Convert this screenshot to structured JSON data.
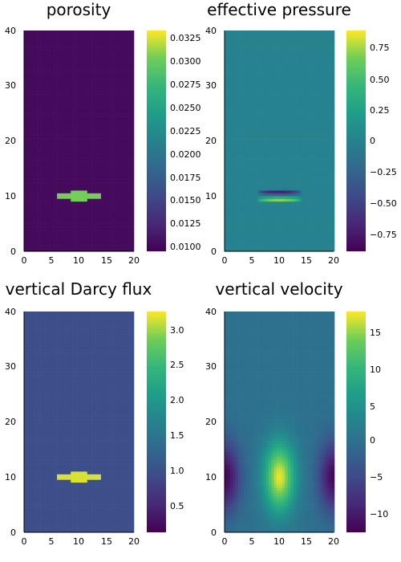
{
  "chart_data": [
    {
      "type": "heatmap",
      "title": "porosity",
      "colormap": "viridis",
      "xlim": [
        0,
        20
      ],
      "ylim": [
        0,
        40
      ],
      "xticks": [
        "0",
        "5",
        "10",
        "15",
        "20"
      ],
      "yticks": [
        "0",
        "10",
        "20",
        "30",
        "40"
      ],
      "clim": [
        0.0095,
        0.0334
      ],
      "colorbar_ticks": [
        "0.0100",
        "0.0125",
        "0.0150",
        "0.0175",
        "0.0200",
        "0.0225",
        "0.0250",
        "0.0275",
        "0.0300",
        "0.0325"
      ],
      "field": {
        "background": 0.0102,
        "feature": "lens",
        "center": [
          10,
          10
        ],
        "half_width": 4,
        "half_height": 0.8,
        "peak": 0.0305
      }
    },
    {
      "type": "heatmap",
      "title": "effective pressure",
      "colormap": "viridis",
      "xlim": [
        0,
        20
      ],
      "ylim": [
        0,
        40
      ],
      "xticks": [
        "0",
        "5",
        "10",
        "15",
        "20"
      ],
      "yticks": [
        "0",
        "10",
        "20",
        "30",
        "40"
      ],
      "clim": [
        -0.88,
        0.88
      ],
      "colorbar_ticks": [
        "0.75",
        "0.50",
        "0.25",
        "0",
        "−0.25",
        "−0.50",
        "−0.75"
      ],
      "field": {
        "background": 0.0,
        "feature": "dipole",
        "center": [
          10,
          10
        ],
        "half_width": 4,
        "min": -0.85,
        "max": 0.85
      }
    },
    {
      "type": "heatmap",
      "title": "vertical Darcy flux",
      "colormap": "viridis",
      "xlim": [
        0,
        20
      ],
      "ylim": [
        0,
        40
      ],
      "xticks": [
        "0",
        "5",
        "10",
        "15",
        "20"
      ],
      "yticks": [
        "0",
        "10",
        "20",
        "30",
        "40"
      ],
      "clim": [
        0.15,
        3.3
      ],
      "colorbar_ticks": [
        "3.0",
        "2.5",
        "2.0",
        "1.5",
        "1.0",
        "0.5"
      ],
      "field": {
        "background": 1.0,
        "feature": "lens",
        "center": [
          10,
          10
        ],
        "half_width": 4,
        "half_height": 0.8,
        "peak": 3.2
      }
    },
    {
      "type": "heatmap",
      "title": "vertical velocity",
      "colormap": "viridis",
      "xlim": [
        0,
        20
      ],
      "ylim": [
        0,
        40
      ],
      "xticks": [
        "0",
        "5",
        "10",
        "15",
        "20"
      ],
      "yticks": [
        "0",
        "10",
        "20",
        "30",
        "40"
      ],
      "clim": [
        -12.5,
        17.5
      ],
      "colorbar_ticks": [
        "15",
        "10",
        "5",
        "0",
        "−5",
        "−10"
      ],
      "field": {
        "background": 0.0,
        "feature": "convection",
        "center": [
          10,
          10
        ],
        "max": 17,
        "min": -12
      }
    }
  ]
}
